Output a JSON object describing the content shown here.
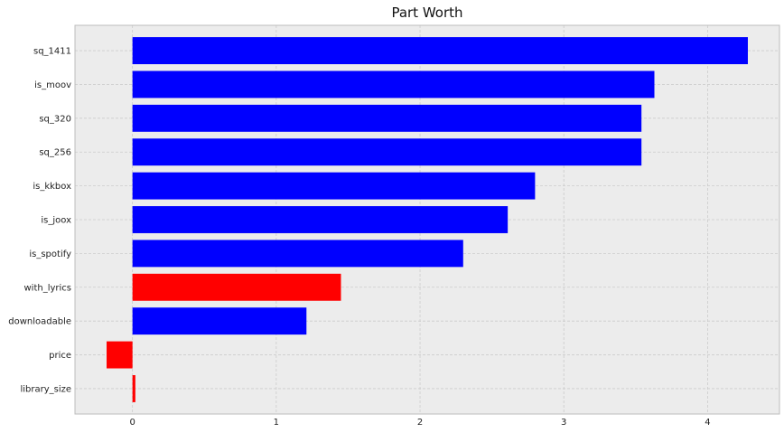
{
  "chart_data": {
    "type": "bar",
    "orientation": "horizontal",
    "title": "Part Worth",
    "xlabel": "",
    "ylabel": "",
    "categories": [
      "sq_1411",
      "is_moov",
      "sq_320",
      "sq_256",
      "is_kkbox",
      "is_joox",
      "is_spotify",
      "with_lyrics",
      "downloadable",
      "price",
      "library_size"
    ],
    "values": [
      4.28,
      3.63,
      3.54,
      3.54,
      2.8,
      2.61,
      2.3,
      1.45,
      1.21,
      -0.18,
      0.02
    ],
    "bar_colors": [
      "#0000ff",
      "#0000ff",
      "#0000ff",
      "#0000ff",
      "#0000ff",
      "#0000ff",
      "#0000ff",
      "#ff0000",
      "#0000ff",
      "#ff0000",
      "#ff0000"
    ],
    "xlim": [
      -0.4,
      4.5
    ],
    "xticks": [
      0,
      1,
      2,
      3,
      4
    ],
    "xtick_labels": [
      "0",
      "1",
      "2",
      "3",
      "4"
    ],
    "grid": true,
    "legend": "none",
    "background_color": "#ececec",
    "grid_color": "#cbcbcb"
  }
}
